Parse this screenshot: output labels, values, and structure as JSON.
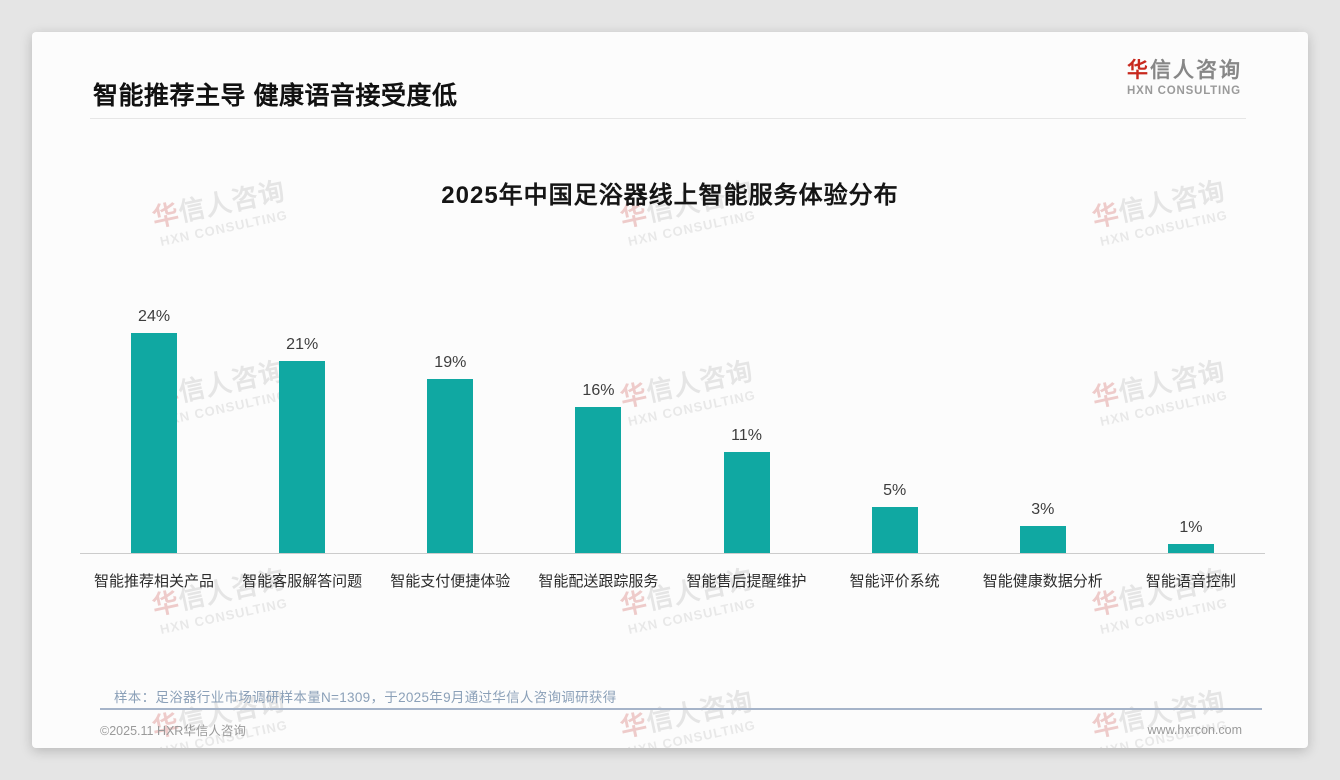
{
  "header": {
    "title": "智能推荐主导 健康语音接受度低"
  },
  "logo": {
    "cn_first": "华",
    "cn_rest": "信人咨询",
    "en": "HXN CONSULTING",
    "accent_color": "#c8281e"
  },
  "watermark": {
    "cn_first": "华",
    "cn_rest": "信人咨询",
    "en": "HXN CONSULTING"
  },
  "chart_data": {
    "type": "bar",
    "title": "2025年中国足浴器线上智能服务体验分布",
    "categories": [
      "智能推荐相关产品",
      "智能客服解答问题",
      "智能支付便捷体验",
      "智能配送跟踪服务",
      "智能售后提醒维护",
      "智能评价系统",
      "智能健康数据分析",
      "智能语音控制"
    ],
    "values": [
      24,
      21,
      19,
      16,
      11,
      5,
      3,
      1
    ],
    "unit": "%",
    "bar_color": "#10a8a2",
    "value_label_color": "#3d3d3d",
    "axis_color": "#cccccc",
    "xlabel": "",
    "ylabel": "",
    "ylim": [
      0,
      26
    ],
    "grid": false,
    "legend": false
  },
  "note": {
    "text": "样本：足浴器行业市场调研样本量N=1309，于2025年9月通过华信人咨询调研获得"
  },
  "footer": {
    "copyright": "©2025.11 HXR华信人咨询",
    "website": "www.hxrcon.com"
  }
}
